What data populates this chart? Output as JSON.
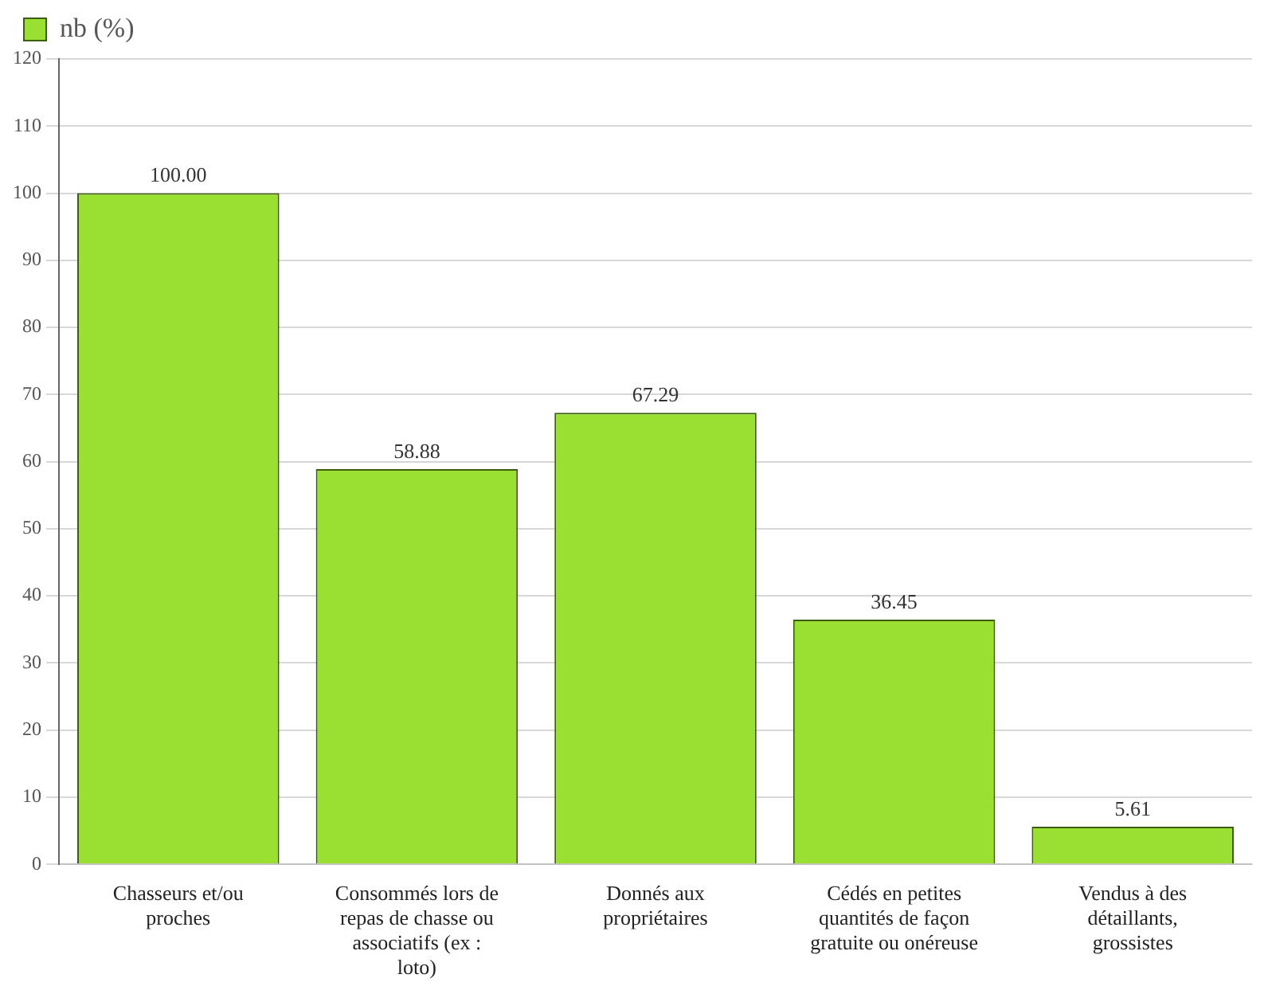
{
  "chart_data": {
    "type": "bar",
    "categories": [
      "Chasseurs et/ou proches",
      "Consommés lors de repas de chasse ou associatifs (ex : loto)",
      "Donnés aux propriétaires",
      "Cédés en petites quantités de façon gratuite ou onéreuse",
      "Vendus à des détaillants, grossistes"
    ],
    "series": [
      {
        "name": "nb (%)",
        "color": "#99e033",
        "values": [
          100,
          58.88,
          67.29,
          36.45,
          5.61
        ],
        "value_labels": [
          "100.00",
          "58.88",
          "67.29",
          "36.45",
          "5.61"
        ]
      }
    ],
    "ylim": [
      0,
      120
    ],
    "yticks": [
      0,
      10,
      20,
      30,
      40,
      50,
      60,
      70,
      80,
      90,
      100,
      110,
      120
    ],
    "grid": "y",
    "legend": "top left"
  }
}
